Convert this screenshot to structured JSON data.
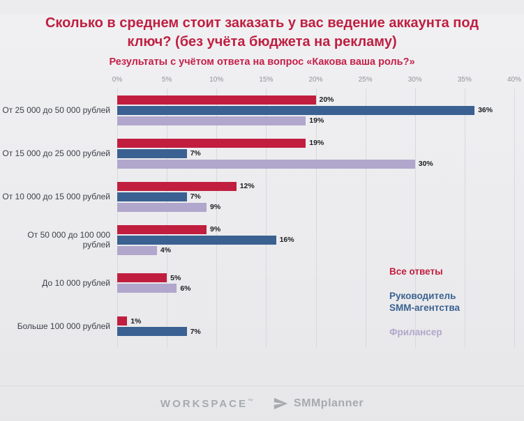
{
  "title": "Сколько в среднем стоит заказать у вас ведение аккаунта под ключ? (без учёта бюджета на рекламу)",
  "subtitle": "Результаты с учётом ответа на вопрос «Какова ваша роль?»",
  "chart_data": {
    "type": "bar",
    "orientation": "horizontal",
    "xlim": [
      0,
      40
    ],
    "x_ticks": [
      "0%",
      "5%",
      "10%",
      "15%",
      "20%",
      "25%",
      "30%",
      "35%",
      "40%"
    ],
    "grid": true,
    "legend_position": "right-inside",
    "categories": [
      "От 25 000 до 50 000 рублей",
      "От 15 000 до 25 000 рублей",
      "От 10 000 до 15 000 рублей",
      "От 50 000 до 100 000 рублей",
      "До 10 000 рублей",
      "Больше 100 000 рублей"
    ],
    "series": [
      {
        "name": "Все ответы",
        "color": "#c11e3f",
        "values": [
          20,
          19,
          12,
          9,
          5,
          1
        ]
      },
      {
        "name": "Руководитель SMM-агентства",
        "color": "#3a6191",
        "values": [
          36,
          7,
          7,
          16,
          null,
          7
        ]
      },
      {
        "name": "Фрилансер",
        "color": "#b1a6cb",
        "values": [
          19,
          30,
          9,
          4,
          6,
          null
        ]
      }
    ]
  },
  "legend": [
    {
      "label": "Все ответы"
    },
    {
      "label": "Руководитель\nSMM-агентства"
    },
    {
      "label": "Фрилансер"
    }
  ],
  "footer": {
    "workspace": "WORKSPACE",
    "workspace_tm": "™",
    "smmplanner": "SMMplanner",
    "plane_icon": "paper-plane-icon"
  }
}
